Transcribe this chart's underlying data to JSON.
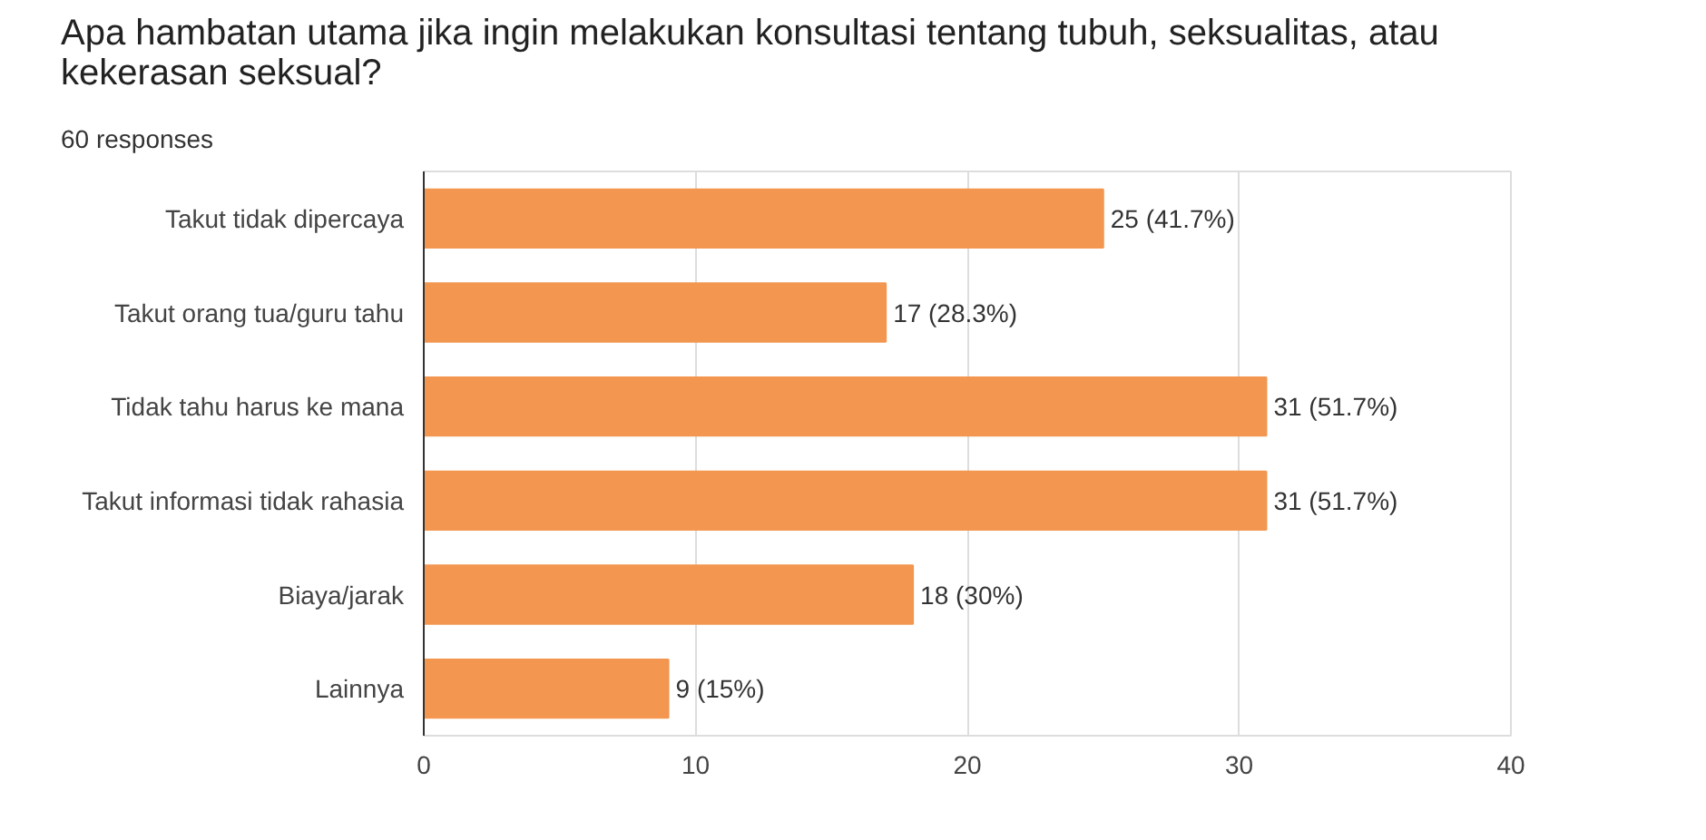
{
  "chart_data": {
    "type": "bar",
    "orientation": "horizontal",
    "title": "Apa hambatan utama jika ingin melakukan konsultasi tentang tubuh, seksualitas, atau kekerasan seksual?",
    "subtitle": "60 responses",
    "categories": [
      "Takut tidak dipercaya",
      "Takut orang tua/guru tahu",
      "Tidak tahu harus ke mana",
      "Takut informasi tidak rahasia",
      "Biaya/jarak",
      "Lainnya"
    ],
    "values": [
      25,
      17,
      31,
      31,
      18,
      9
    ],
    "value_labels": [
      "25 (41.7%)",
      "17 (28.3%)",
      "31 (51.7%)",
      "31 (51.7%)",
      "18 (30%)",
      "9 (15%)"
    ],
    "color": "#f29650",
    "xlim": [
      0,
      40
    ],
    "xticks": [
      0,
      10,
      20,
      30,
      40
    ],
    "grid": "x"
  }
}
